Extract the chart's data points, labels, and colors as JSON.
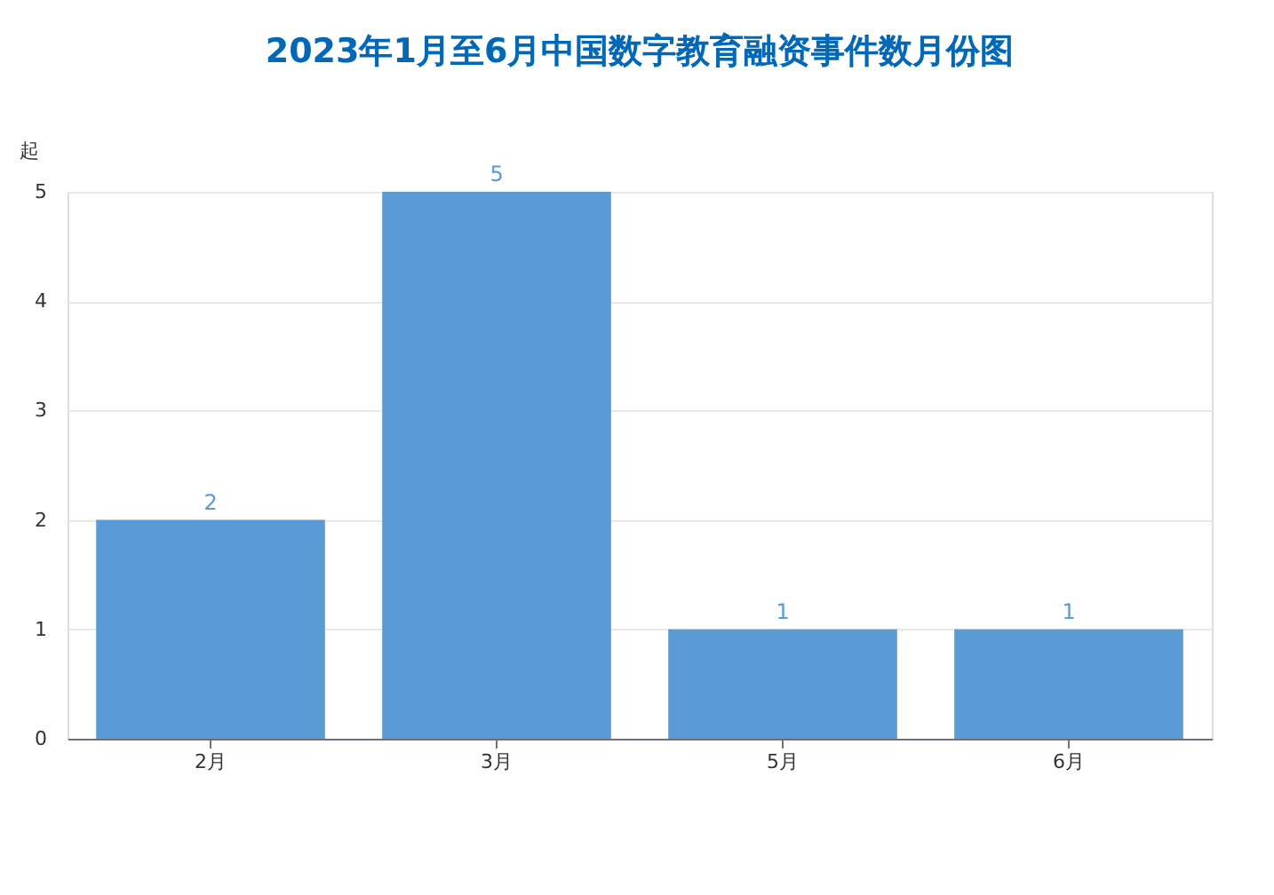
{
  "chart_data": {
    "type": "bar",
    "title": "2023年1月至6月中国数字教育融资事件数月份图",
    "ylabel": "起",
    "categories": [
      "2月",
      "3月",
      "5月",
      "6月"
    ],
    "values": [
      2,
      5,
      1,
      1
    ],
    "color": "#5b9bd5",
    "ylim": [
      0,
      5
    ],
    "yticks": [
      0,
      1,
      2,
      3,
      4,
      5
    ],
    "grid": "y",
    "data_labels": true
  }
}
